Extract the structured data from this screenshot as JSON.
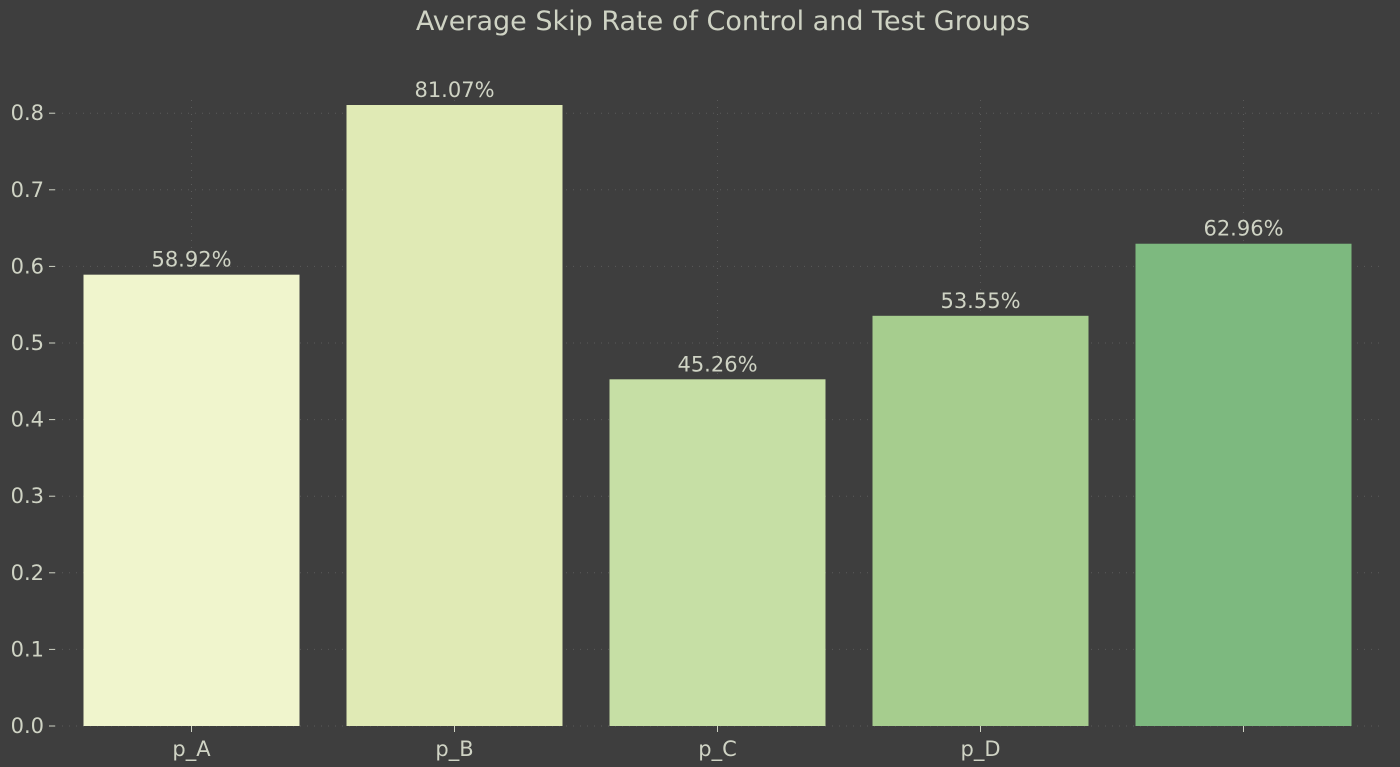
{
  "chart_data": {
    "type": "bar",
    "title": "Average Skip Rate of Control and Test Groups",
    "xlabel": "",
    "ylabel": "",
    "categories": [
      "p_A",
      "p_B",
      "p_C",
      "p_D",
      ""
    ],
    "values": [
      0.5892,
      0.8107,
      0.4526,
      0.5355,
      0.6296
    ],
    "data_labels": [
      "58.92%",
      "81.07%",
      "45.26%",
      "53.55%",
      "62.96%"
    ],
    "colors": [
      "#f0f5cd",
      "#e0eab5",
      "#c6dfa5",
      "#a6cd8e",
      "#7db97f"
    ],
    "ylim": [
      0,
      0.82
    ],
    "yticks": [
      "0.0",
      "0.1",
      "0.2",
      "0.3",
      "0.4",
      "0.5",
      "0.6",
      "0.7",
      "0.8"
    ],
    "grid": true,
    "legend": "none"
  }
}
